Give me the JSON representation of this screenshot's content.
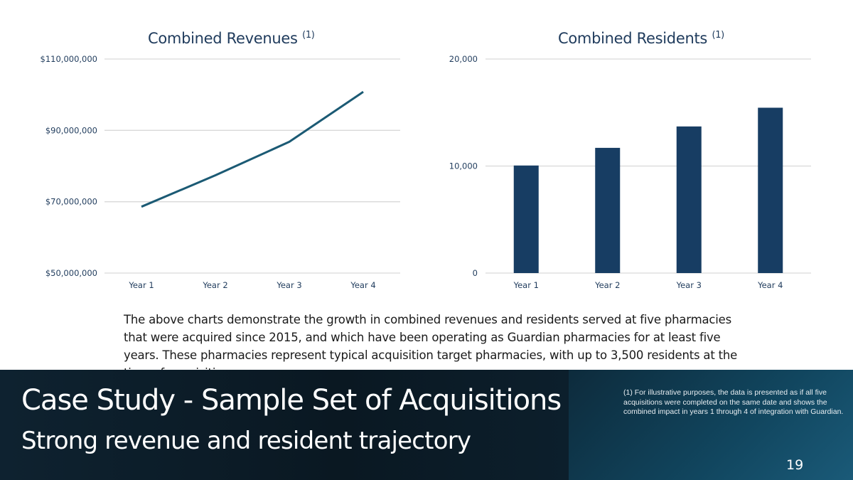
{
  "chart_data": [
    {
      "type": "line",
      "title": "Combined Revenues",
      "title_superscript": "(1)",
      "categories": [
        "Year 1",
        "Year 2",
        "Year 3",
        "Year 4"
      ],
      "values": [
        68600000,
        77400000,
        86800000,
        100800000
      ],
      "ylim": [
        50000000,
        110000000
      ],
      "yticks": [
        50000000,
        70000000,
        90000000,
        110000000
      ],
      "ytick_labels": [
        "$50,000,000",
        "$70,000,000",
        "$90,000,000",
        "$110,000,000"
      ],
      "grid": true,
      "color": "#1b5a74"
    },
    {
      "type": "bar",
      "title": "Combined Residents",
      "title_superscript": "(1)",
      "categories": [
        "Year 1",
        "Year 2",
        "Year 3",
        "Year 4"
      ],
      "values": [
        10050,
        11700,
        13700,
        15450
      ],
      "ylim": [
        0,
        20000
      ],
      "yticks": [
        0,
        10000,
        20000
      ],
      "ytick_labels": [
        "0",
        "10,000",
        "20,000"
      ],
      "grid": true,
      "color": "#173d63"
    }
  ],
  "body_text": "The above charts demonstrate the growth in combined revenues and residents served at five pharmacies that were acquired since 2015, and which have been operating as Guardian pharmacies for at least five years. These pharmacies represent typical acquisition target pharmacies, with up to 3,500 residents at the time of acquisition.",
  "slide": {
    "title": "Case Study - Sample Set of Acquisitions",
    "subtitle": "Strong revenue and resident trajectory",
    "footnote": "(1) For illustrative purposes, the data is presented as if all five acquisitions were completed on the same date and shows the combined impact in years 1 through 4 of integration with Guardian.",
    "page_number": "19"
  }
}
